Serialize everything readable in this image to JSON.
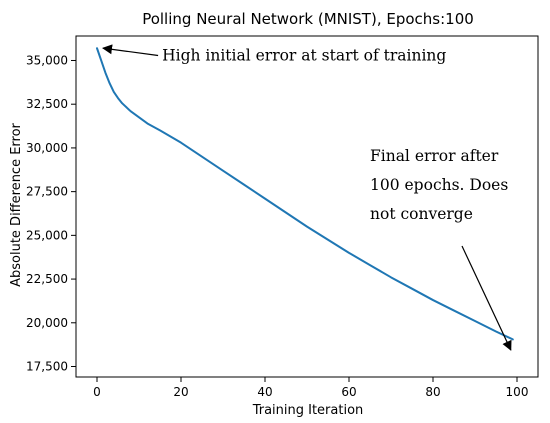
{
  "chart_data": {
    "type": "line",
    "title": "Polling Neural Network (MNIST), Epochs:100",
    "xlabel": "Training Iteration",
    "ylabel": "Absolute Difference Error",
    "xlim": [
      -5,
      105
    ],
    "ylim": [
      16900,
      36400
    ],
    "x_ticks": [
      0,
      20,
      40,
      60,
      80,
      100
    ],
    "y_ticks": [
      17500,
      20000,
      22500,
      25000,
      27500,
      30000,
      32500,
      35000
    ],
    "x_tick_labels": [
      "0",
      "20",
      "40",
      "60",
      "80",
      "100"
    ],
    "y_tick_labels": [
      "17,500",
      "20,000",
      "22,500",
      "25,000",
      "27,500",
      "30,000",
      "32,500",
      "35,000"
    ],
    "grid": false,
    "line_color": "#1f77b4",
    "series": [
      {
        "x": [
          0,
          1,
          2,
          3,
          4,
          5,
          6,
          8,
          10,
          12,
          15,
          20,
          25,
          30,
          35,
          40,
          45,
          50,
          55,
          60,
          65,
          70,
          75,
          80,
          85,
          90,
          95,
          99
        ],
        "y": [
          35700,
          35000,
          34300,
          33700,
          33200,
          32850,
          32550,
          32100,
          31750,
          31400,
          31000,
          30300,
          29500,
          28700,
          27900,
          27100,
          26300,
          25500,
          24750,
          24000,
          23300,
          22600,
          21950,
          21300,
          20700,
          20100,
          19500,
          19050
        ]
      }
    ],
    "annotations": [
      {
        "lines": [
          "High initial error at start of training"
        ],
        "point": [
          0,
          35650
        ],
        "text_anchor_data": [
          15.5,
          35000
        ]
      },
      {
        "lines": [
          "Final error  after",
          "100 epochs. Does",
          "not converge"
        ],
        "point": [
          99,
          18100
        ],
        "text_anchor_data": [
          65,
          29250
        ]
      }
    ]
  }
}
